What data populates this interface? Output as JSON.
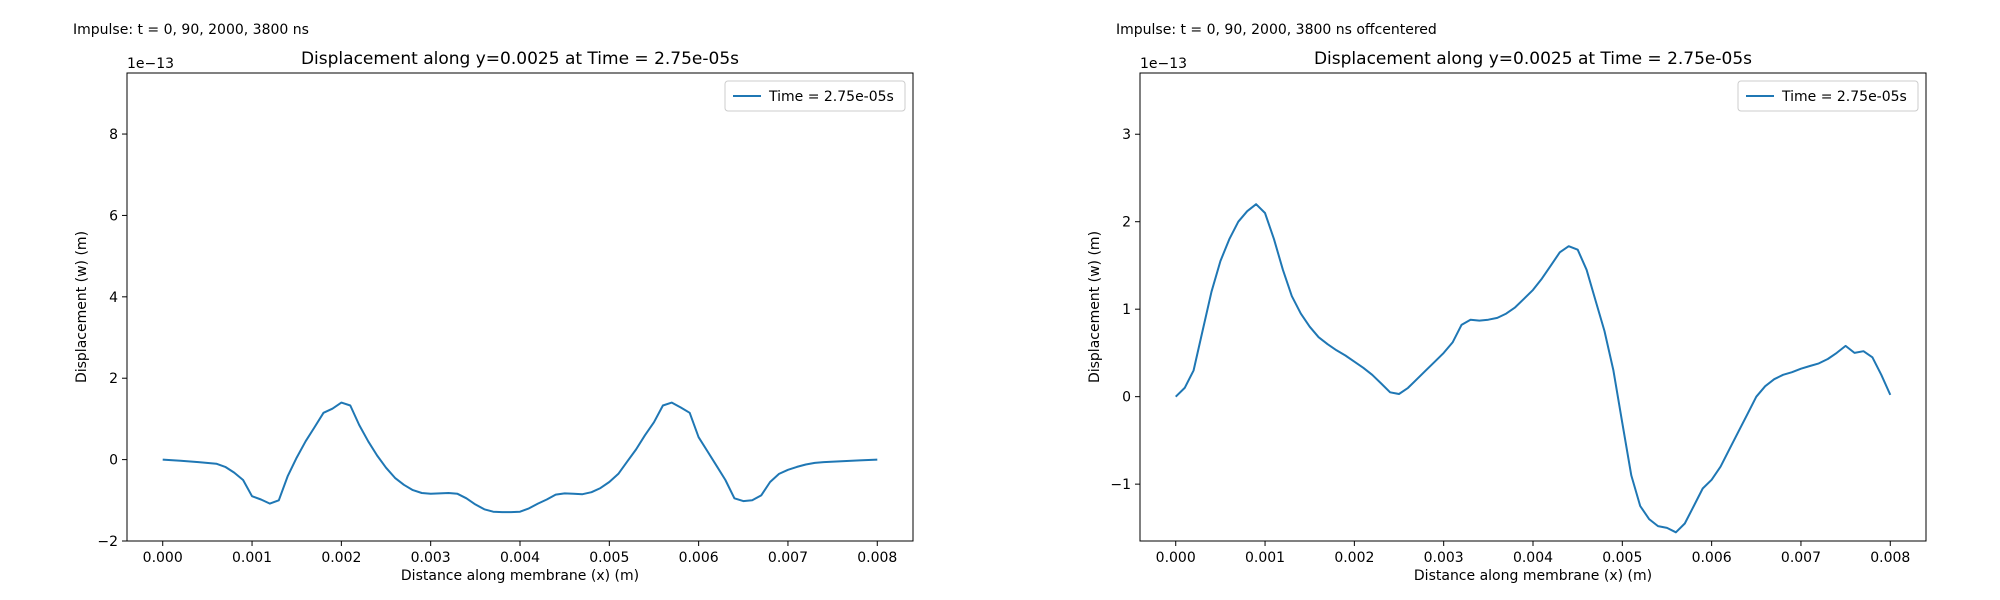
{
  "captions": {
    "left": "Impulse: t = 0, 90, 2000, 3800 ns",
    "right": "Impulse: t = 0, 90, 2000, 3800 ns offcentered"
  },
  "chart_data": [
    {
      "type": "line",
      "title": "Displacement along y=0.0025 at Time = 2.75e-05s",
      "xlabel": "Distance along membrane (x) (m)",
      "ylabel": "Displacement (w) (m)",
      "y_scale_label": "1e−13",
      "xlim": [
        -0.0004,
        0.0084
      ],
      "ylim": [
        -2,
        9.5
      ],
      "xticks": [
        0,
        0.001,
        0.002,
        0.003,
        0.004,
        0.005,
        0.006,
        0.007,
        0.008
      ],
      "xtick_labels": [
        "0.000",
        "0.001",
        "0.002",
        "0.003",
        "0.004",
        "0.005",
        "0.006",
        "0.007",
        "0.008"
      ],
      "yticks": [
        -2,
        0,
        2,
        4,
        6,
        8
      ],
      "ytick_labels": [
        "−2",
        "0",
        "2",
        "4",
        "6",
        "8"
      ],
      "grid": false,
      "legend_position": "top-right",
      "series": [
        {
          "name": "Time = 2.75e-05s",
          "color": "#1f77b4",
          "x": [
            0,
            0.0002,
            0.0004,
            0.0006,
            0.0007,
            0.0008,
            0.0009,
            0.001,
            0.0011,
            0.0012,
            0.0013,
            0.0014,
            0.0015,
            0.0016,
            0.0017,
            0.0018,
            0.0019,
            0.002,
            0.0021,
            0.0022,
            0.0023,
            0.0024,
            0.0025,
            0.0026,
            0.0027,
            0.0028,
            0.0029,
            0.003,
            0.0031,
            0.0032,
            0.0033,
            0.0034,
            0.0035,
            0.0036,
            0.0037,
            0.0038,
            0.0039,
            0.004,
            0.0041,
            0.0042,
            0.0043,
            0.0044,
            0.0045,
            0.0046,
            0.0047,
            0.0048,
            0.0049,
            0.005,
            0.0051,
            0.0052,
            0.0053,
            0.0054,
            0.0055,
            0.0056,
            0.0057,
            0.0058,
            0.0059,
            0.006,
            0.0061,
            0.0062,
            0.0063,
            0.0064,
            0.0065,
            0.0066,
            0.0067,
            0.0068,
            0.0069,
            0.007,
            0.0071,
            0.0072,
            0.0073,
            0.0074,
            0.0076,
            0.0078,
            0.008
          ],
          "y": [
            0,
            -0.03,
            -0.06,
            -0.1,
            -0.18,
            -0.32,
            -0.5,
            -0.9,
            -0.98,
            -1.08,
            -1.0,
            -0.4,
            0.05,
            0.45,
            0.8,
            1.15,
            1.25,
            1.4,
            1.33,
            0.85,
            0.45,
            0.1,
            -0.2,
            -0.45,
            -0.62,
            -0.75,
            -0.82,
            -0.84,
            -0.83,
            -0.82,
            -0.84,
            -0.95,
            -1.1,
            -1.22,
            -1.28,
            -1.29,
            -1.29,
            -1.28,
            -1.2,
            -1.08,
            -0.98,
            -0.86,
            -0.83,
            -0.84,
            -0.85,
            -0.8,
            -0.7,
            -0.55,
            -0.35,
            -0.05,
            0.25,
            0.6,
            0.92,
            1.33,
            1.4,
            1.28,
            1.15,
            0.55,
            0.2,
            -0.15,
            -0.5,
            -0.95,
            -1.02,
            -1.0,
            -0.88,
            -0.55,
            -0.35,
            -0.25,
            -0.18,
            -0.12,
            -0.08,
            -0.06,
            -0.04,
            -0.02,
            0
          ]
        }
      ]
    },
    {
      "type": "line",
      "title": "Displacement along y=0.0025 at Time = 2.75e-05s",
      "xlabel": "Distance along membrane (x) (m)",
      "ylabel": "Displacement (w) (m)",
      "y_scale_label": "1e−13",
      "xlim": [
        -0.0004,
        0.0084
      ],
      "ylim": [
        -1.65,
        3.7
      ],
      "xticks": [
        0,
        0.001,
        0.002,
        0.003,
        0.004,
        0.005,
        0.006,
        0.007,
        0.008
      ],
      "xtick_labels": [
        "0.000",
        "0.001",
        "0.002",
        "0.003",
        "0.004",
        "0.005",
        "0.006",
        "0.007",
        "0.008"
      ],
      "yticks": [
        -1,
        0,
        1,
        2,
        3
      ],
      "ytick_labels": [
        "−1",
        "0",
        "1",
        "2",
        "3"
      ],
      "grid": false,
      "legend_position": "top-right",
      "series": [
        {
          "name": "Time = 2.75e-05s",
          "color": "#1f77b4",
          "x": [
            0,
            0.0001,
            0.0002,
            0.0003,
            0.0004,
            0.0005,
            0.0006,
            0.0007,
            0.0008,
            0.0009,
            0.001,
            0.0011,
            0.0012,
            0.0013,
            0.0014,
            0.0015,
            0.0016,
            0.0017,
            0.0018,
            0.0019,
            0.002,
            0.0021,
            0.0022,
            0.0023,
            0.0024,
            0.0025,
            0.0026,
            0.0027,
            0.0028,
            0.0029,
            0.003,
            0.0031,
            0.0032,
            0.0033,
            0.0034,
            0.0035,
            0.0036,
            0.0037,
            0.0038,
            0.0039,
            0.004,
            0.0041,
            0.0042,
            0.0043,
            0.0044,
            0.0045,
            0.0046,
            0.0047,
            0.0048,
            0.0049,
            0.005,
            0.0051,
            0.0052,
            0.0053,
            0.0054,
            0.0055,
            0.0056,
            0.0057,
            0.0058,
            0.0059,
            0.006,
            0.0061,
            0.0062,
            0.0063,
            0.0064,
            0.0065,
            0.0066,
            0.0067,
            0.0068,
            0.0069,
            0.007,
            0.0071,
            0.0072,
            0.0073,
            0.0074,
            0.0075,
            0.0076,
            0.0077,
            0.0078,
            0.0079,
            0.008
          ],
          "y": [
            0,
            0.1,
            0.3,
            0.75,
            1.2,
            1.55,
            1.8,
            2.0,
            2.12,
            2.2,
            2.1,
            1.8,
            1.45,
            1.15,
            0.95,
            0.8,
            0.68,
            0.6,
            0.53,
            0.47,
            0.4,
            0.33,
            0.25,
            0.15,
            0.05,
            0.03,
            0.1,
            0.2,
            0.3,
            0.4,
            0.5,
            0.62,
            0.82,
            0.88,
            0.87,
            0.88,
            0.9,
            0.95,
            1.02,
            1.12,
            1.22,
            1.35,
            1.5,
            1.65,
            1.72,
            1.68,
            1.45,
            1.1,
            0.75,
            0.3,
            -0.3,
            -0.9,
            -1.25,
            -1.4,
            -1.48,
            -1.5,
            -1.55,
            -1.45,
            -1.25,
            -1.05,
            -0.95,
            -0.8,
            -0.6,
            -0.4,
            -0.2,
            0.0,
            0.12,
            0.2,
            0.25,
            0.28,
            0.32,
            0.35,
            0.38,
            0.43,
            0.5,
            0.58,
            0.5,
            0.52,
            0.45,
            0.25,
            0.02
          ]
        }
      ]
    }
  ]
}
